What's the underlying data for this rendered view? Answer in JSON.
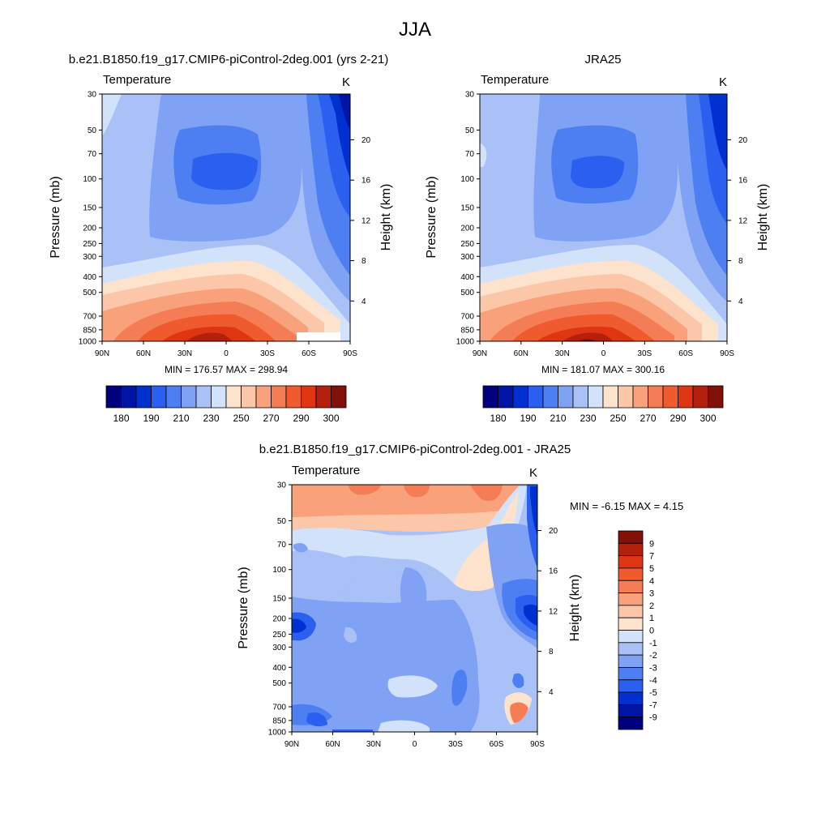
{
  "main_title": "JJA",
  "chart_data": [
    {
      "type": "heatmap",
      "title": "b.e21.B1850.f19_g17.CMIP6-piControl-2deg.001 (yrs 2-21)",
      "variable_label": "Temperature",
      "units_label": "K",
      "ylabel": "Pressure (mb)",
      "ylabel_right": "Height (km)",
      "x_ticks": [
        "90N",
        "60N",
        "30N",
        "0",
        "30S",
        "60S",
        "90S"
      ],
      "y_ticks": [
        "30",
        "50",
        "70",
        "100",
        "150",
        "200",
        "250",
        "300",
        "400",
        "500",
        "700",
        "850",
        "1000"
      ],
      "y_ticks_right": [
        "20",
        "16",
        "12",
        "8",
        "4"
      ],
      "stats": "MIN = 176.57  MAX = 298.94",
      "colorbar_labels": [
        "180",
        "190",
        "210",
        "230",
        "250",
        "270",
        "290",
        "300"
      ],
      "colors": [
        "#00007f",
        "#0014a6",
        "#0030d0",
        "#2a5ff0",
        "#4d7ff2",
        "#7fa2f4",
        "#a9c1f7",
        "#d3e2fb",
        "#fde2cc",
        "#fcc7a8",
        "#f8a17a",
        "#f47d55",
        "#ef5a2e",
        "#e03512",
        "#b5200d",
        "#801008"
      ]
    },
    {
      "type": "heatmap",
      "title": "JRA25",
      "variable_label": "Temperature",
      "units_label": "K",
      "ylabel": "Pressure (mb)",
      "ylabel_right": "Height (km)",
      "x_ticks": [
        "90N",
        "60N",
        "30N",
        "0",
        "30S",
        "60S",
        "90S"
      ],
      "y_ticks": [
        "30",
        "50",
        "70",
        "100",
        "150",
        "200",
        "250",
        "300",
        "400",
        "500",
        "700",
        "850",
        "1000"
      ],
      "y_ticks_right": [
        "20",
        "16",
        "12",
        "8",
        "4"
      ],
      "stats": "MIN = 181.07  MAX = 300.16",
      "colorbar_labels": [
        "180",
        "190",
        "210",
        "230",
        "250",
        "270",
        "290",
        "300"
      ],
      "colors": [
        "#00007f",
        "#0014a6",
        "#0030d0",
        "#2a5ff0",
        "#4d7ff2",
        "#7fa2f4",
        "#a9c1f7",
        "#d3e2fb",
        "#fde2cc",
        "#fcc7a8",
        "#f8a17a",
        "#f47d55",
        "#ef5a2e",
        "#e03512",
        "#b5200d",
        "#801008"
      ]
    },
    {
      "type": "heatmap",
      "title": "b.e21.B1850.f19_g17.CMIP6-piControl-2deg.001 - JRA25",
      "variable_label": "Temperature",
      "units_label": "K",
      "ylabel": "Pressure (mb)",
      "ylabel_right": "Height (km)",
      "x_ticks": [
        "90N",
        "60N",
        "30N",
        "0",
        "30S",
        "60S",
        "90S"
      ],
      "y_ticks": [
        "30",
        "50",
        "70",
        "100",
        "150",
        "200",
        "250",
        "300",
        "400",
        "500",
        "700",
        "850",
        "1000"
      ],
      "y_ticks_right": [
        "20",
        "16",
        "12",
        "8",
        "4"
      ],
      "stats": "MIN =  -6.15  MAX =   4.15",
      "colorbar_labels": [
        "9",
        "7",
        "5",
        "4",
        "3",
        "2",
        "1",
        "0",
        "-1",
        "-2",
        "-3",
        "-4",
        "-5",
        "-7",
        "-9"
      ],
      "colors": [
        "#801008",
        "#b5200d",
        "#e03512",
        "#ef5a2e",
        "#f47d55",
        "#f8a17a",
        "#fcc7a8",
        "#fde2cc",
        "#d3e2fb",
        "#a9c1f7",
        "#7fa2f4",
        "#4d7ff2",
        "#2a5ff0",
        "#0030d0",
        "#0014a6",
        "#00007f"
      ]
    }
  ]
}
